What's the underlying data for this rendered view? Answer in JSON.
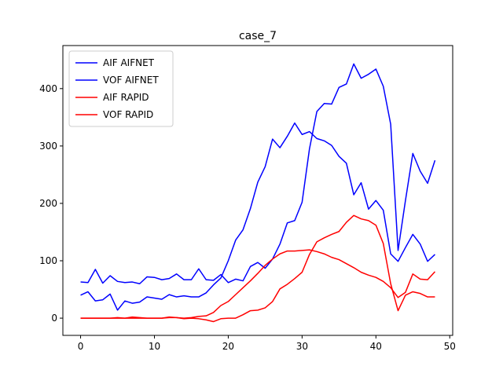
{
  "chart_data": {
    "type": "line",
    "title": "case_7",
    "xlabel": "",
    "ylabel": "",
    "xlim": [
      -2.4,
      50.4
    ],
    "ylim": [
      -30,
      475
    ],
    "xticks": [
      0,
      10,
      20,
      30,
      40,
      50
    ],
    "yticks": [
      0,
      100,
      200,
      300,
      400
    ],
    "grid": false,
    "legend_position": "top-left",
    "x": [
      0,
      1,
      2,
      3,
      4,
      5,
      6,
      7,
      8,
      9,
      10,
      11,
      12,
      13,
      14,
      15,
      16,
      17,
      18,
      19,
      20,
      21,
      22,
      23,
      24,
      25,
      26,
      27,
      28,
      29,
      30,
      31,
      32,
      33,
      34,
      35,
      36,
      37,
      38,
      39,
      40,
      41,
      42,
      43,
      44,
      45,
      46,
      47,
      48
    ],
    "series": [
      {
        "name": "AIF AIFNET",
        "color": "#0000ff",
        "values": [
          63,
          62,
          85,
          61,
          74,
          64,
          62,
          63,
          60,
          72,
          71,
          67,
          69,
          77,
          67,
          67,
          86,
          67,
          66,
          76,
          62,
          68,
          65,
          90,
          97,
          87,
          103,
          129,
          166,
          170,
          202,
          295,
          360,
          374,
          373,
          402,
          408,
          443,
          418,
          425,
          434,
          404,
          338,
          118,
          205,
          287,
          256,
          235,
          275
        ]
      },
      {
        "name": "VOF AIFNET",
        "color": "#0000ff",
        "values": [
          40,
          46,
          30,
          32,
          42,
          14,
          30,
          26,
          28,
          37,
          35,
          33,
          41,
          37,
          39,
          37,
          37,
          44,
          58,
          70,
          100,
          136,
          154,
          191,
          237,
          264,
          312,
          297,
          317,
          340,
          320,
          325,
          313,
          309,
          301,
          282,
          270,
          215,
          236,
          190,
          205,
          188,
          112,
          99,
          123,
          146,
          129,
          99,
          111
        ]
      },
      {
        "name": "AIF RAPID",
        "color": "#ff0000",
        "values": [
          0,
          0,
          0,
          0,
          0,
          1,
          0,
          2,
          1,
          0,
          0,
          0,
          1,
          1,
          -1,
          0,
          -1,
          -3,
          -6,
          -1,
          0,
          0,
          6,
          13,
          14,
          18,
          29,
          51,
          59,
          69,
          80,
          111,
          133,
          140,
          146,
          151,
          167,
          179,
          173,
          170,
          162,
          130,
          60,
          13,
          40,
          46,
          43,
          37,
          37
        ]
      },
      {
        "name": "VOF RAPID",
        "color": "#ff0000",
        "values": [
          0,
          0,
          0,
          0,
          0,
          0,
          0,
          0,
          0,
          0,
          0,
          0,
          2,
          1,
          0,
          1,
          3,
          4,
          10,
          22,
          29,
          41,
          53,
          65,
          78,
          92,
          103,
          112,
          117,
          117,
          118,
          119,
          116,
          112,
          106,
          102,
          95,
          88,
          80,
          75,
          71,
          64,
          53,
          36,
          45,
          77,
          68,
          67,
          81
        ]
      }
    ]
  }
}
